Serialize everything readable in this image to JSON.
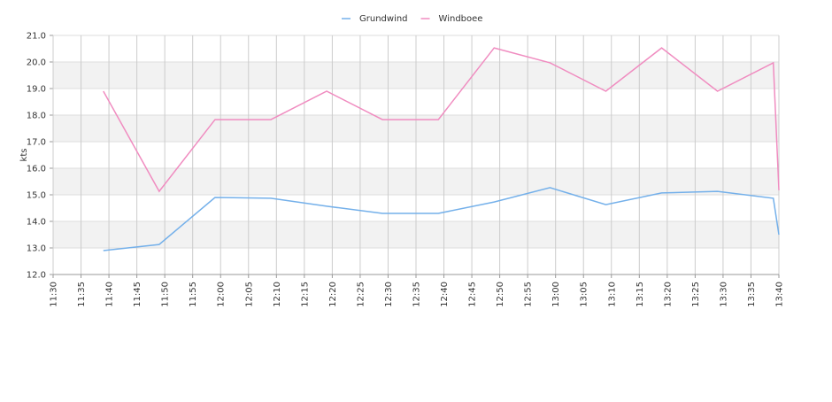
{
  "chart_data": {
    "type": "line",
    "y_label": "kts",
    "x": [
      "11:39",
      "11:49",
      "11:59",
      "12:09",
      "12:19",
      "12:29",
      "12:39",
      "12:49",
      "12:59",
      "13:09",
      "13:19",
      "13:29",
      "13:39",
      "13:40"
    ],
    "series": [
      {
        "name": "Grundwind",
        "color": "#74b0ea",
        "values": [
          12.9,
          13.13,
          14.9,
          14.87,
          14.57,
          14.3,
          14.3,
          14.73,
          15.27,
          14.63,
          15.07,
          15.13,
          14.87,
          13.5
        ]
      },
      {
        "name": "Windboee",
        "color": "#f08cc0",
        "values": [
          18.9,
          15.13,
          17.83,
          17.83,
          18.9,
          17.83,
          17.83,
          20.53,
          19.97,
          18.9,
          20.53,
          18.9,
          19.97,
          15.17
        ]
      }
    ],
    "xlim": [
      "11:30",
      "13:40"
    ],
    "xticks": [
      "11:30",
      "11:35",
      "11:40",
      "11:45",
      "11:50",
      "11:55",
      "12:00",
      "12:05",
      "12:10",
      "12:15",
      "12:20",
      "12:25",
      "12:30",
      "12:35",
      "12:40",
      "12:45",
      "12:50",
      "12:55",
      "13:00",
      "13:05",
      "13:10",
      "13:15",
      "13:20",
      "13:25",
      "13:30",
      "13:35",
      "13:40"
    ],
    "ylim": [
      12,
      21
    ],
    "yticks": [
      {
        "value": 12,
        "label": "12.0"
      },
      {
        "value": 13,
        "label": "13.0"
      },
      {
        "value": 14,
        "label": "14.0"
      },
      {
        "value": 15,
        "label": "15.0"
      },
      {
        "value": 16,
        "label": "16.0"
      },
      {
        "value": 17,
        "label": "17.0"
      },
      {
        "value": 18,
        "label": "18.0"
      },
      {
        "value": 19,
        "label": "19.0"
      },
      {
        "value": 20,
        "label": "20.0"
      },
      {
        "value": 21,
        "label": "21.0"
      }
    ],
    "grid": true,
    "legend": "top"
  }
}
